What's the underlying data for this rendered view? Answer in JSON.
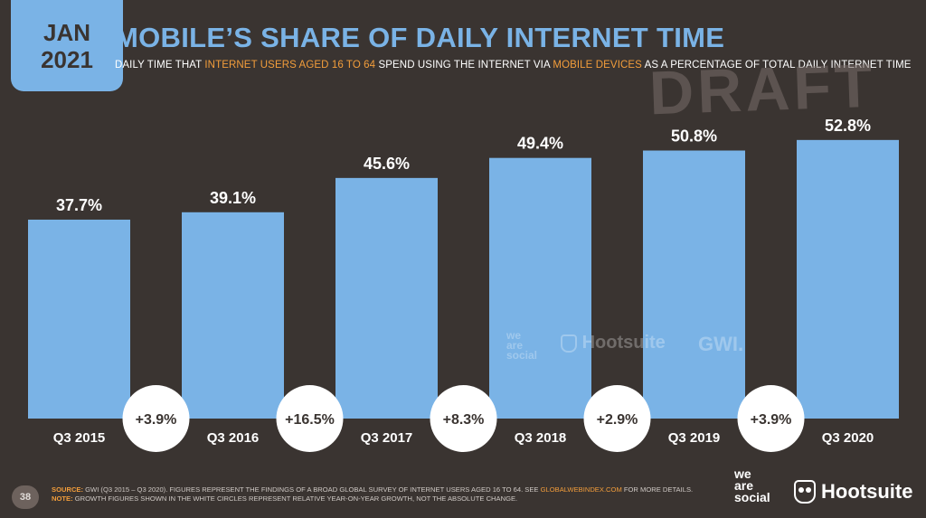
{
  "header": {
    "month": "JAN",
    "year": "2021",
    "title": "MOBILE’S SHARE OF DAILY INTERNET TIME",
    "subtitle_parts": [
      {
        "text": "DAILY TIME THAT ",
        "highlight": false
      },
      {
        "text": "INTERNET USERS AGED 16 TO 64",
        "highlight": true
      },
      {
        "text": " SPEND USING THE INTERNET VIA ",
        "highlight": false
      },
      {
        "text": "MOBILE DEVICES",
        "highlight": true
      },
      {
        "text": " AS A PERCENTAGE OF TOTAL DAILY INTERNET TIME",
        "highlight": false
      }
    ],
    "draft_stamp": "DRAFT"
  },
  "chart_data": {
    "type": "bar",
    "categories": [
      "Q3 2015",
      "Q3 2016",
      "Q3 2017",
      "Q3 2018",
      "Q3 2019",
      "Q3 2020"
    ],
    "values": [
      37.7,
      39.1,
      45.6,
      49.4,
      50.8,
      52.8
    ],
    "value_labels": [
      "37.7%",
      "39.1%",
      "45.6%",
      "49.4%",
      "50.8%",
      "52.8%"
    ],
    "growth_labels": [
      "+3.9%",
      "+16.5%",
      "+8.3%",
      "+2.9%",
      "+3.9%"
    ],
    "ylim": [
      0,
      55
    ],
    "grid": false,
    "colors": {
      "bar": "#7ab3e6",
      "background": "#3a3431",
      "circle": "#ffffff",
      "accent": "#f29d3b"
    }
  },
  "watermarks": {
    "wearesocial": [
      "we",
      "are",
      "social"
    ],
    "hootsuite": "Hootsuite",
    "gwi": "GWI."
  },
  "footer": {
    "page_number": "38",
    "source_label": "SOURCE:",
    "source_text": " GWI (Q3 2015 – Q3 2020). FIGURES REPRESENT THE FINDINGS OF A BROAD GLOBAL SURVEY OF INTERNET USERS AGED 16 TO 64. SEE ",
    "source_link": "GLOBALWEBINDEX.COM",
    "source_tail": " FOR MORE DETAILS.",
    "note_label": "NOTE:",
    "note_text": " GROWTH FIGURES SHOWN IN THE WHITE CIRCLES REPRESENT RELATIVE YEAR-ON-YEAR GROWTH, NOT THE ABSOLUTE CHANGE."
  },
  "brands": {
    "wearesocial": [
      "we",
      "are",
      "social"
    ],
    "hootsuite": "Hootsuite"
  }
}
